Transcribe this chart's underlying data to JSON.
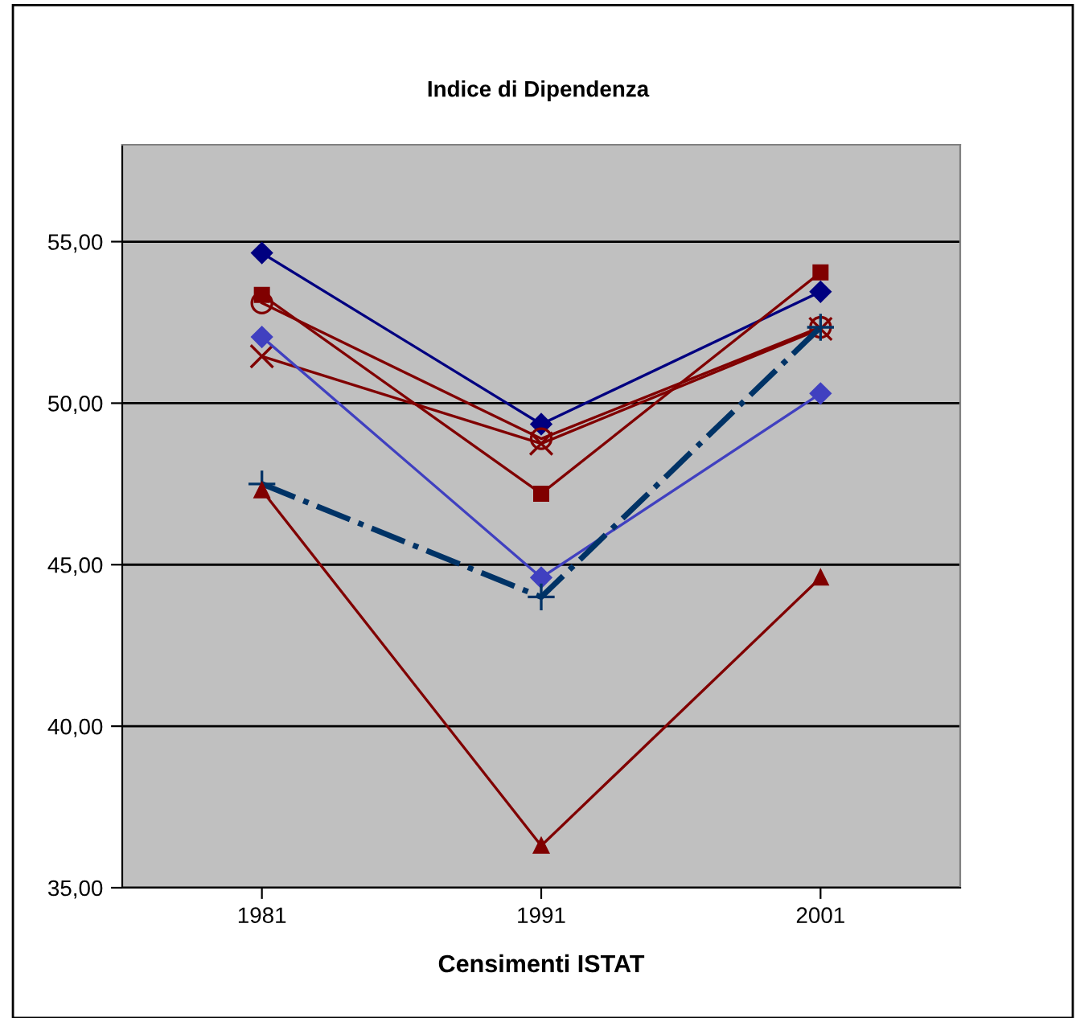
{
  "chart_data": {
    "type": "line",
    "title": "Indice di Dipendenza",
    "xlabel": "Censimenti ISTAT",
    "categories": [
      "1981",
      "1991",
      "2001"
    ],
    "series": [
      {
        "color": "#000080",
        "values": [
          54.65,
          49.35,
          53.45
        ],
        "marker": "diamond",
        "line_style": "solid"
      },
      {
        "color": "#800000",
        "values": [
          53.35,
          47.2,
          54.05
        ],
        "marker": "square",
        "line_style": "solid"
      },
      {
        "color": "#800000",
        "values": [
          53.1,
          48.9,
          52.35
        ],
        "marker": "circle",
        "line_style": "solid"
      },
      {
        "color": "#800000",
        "values": [
          51.45,
          48.75,
          52.3
        ],
        "marker": "cross",
        "line_style": "solid"
      },
      {
        "color": "#4040c0",
        "values": [
          52.05,
          44.6,
          50.3
        ],
        "marker": "diamond",
        "line_style": "solid"
      },
      {
        "color": "#003366",
        "values": [
          47.5,
          44.0,
          52.35
        ],
        "marker": "plus",
        "line_style": "dashdot"
      },
      {
        "color": "#800000",
        "values": [
          47.3,
          36.3,
          44.6
        ],
        "marker": "triangle",
        "line_style": "solid"
      }
    ],
    "ylim": [
      35,
      58
    ],
    "yticks": [
      {
        "value": 35,
        "label": "35,00"
      },
      {
        "value": 40,
        "label": "40,00"
      },
      {
        "value": 45,
        "label": "45,00"
      },
      {
        "value": 50,
        "label": "50,00"
      },
      {
        "value": 55,
        "label": "55,00"
      }
    ],
    "grid": "y"
  }
}
